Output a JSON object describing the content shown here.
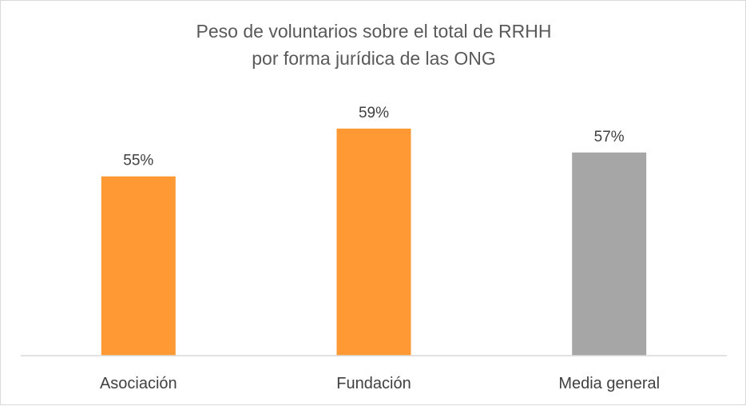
{
  "chart_data": {
    "type": "bar",
    "title_lines": [
      "Peso de voluntarios sobre el total de RRHH",
      "por forma jurídica de las ONG"
    ],
    "categories": [
      "Asociación",
      "Fundación",
      "Media general"
    ],
    "values": [
      55,
      59,
      57
    ],
    "data_labels": [
      "55%",
      "59%",
      "57%"
    ],
    "bar_colors": [
      "#ff9933",
      "#ff9933",
      "#a6a6a6"
    ],
    "axis_color": "#d9d9d9",
    "text_color": "#404040",
    "title_color": "#595959",
    "ylim": [
      40,
      61
    ],
    "grid": false,
    "legend": "none"
  }
}
